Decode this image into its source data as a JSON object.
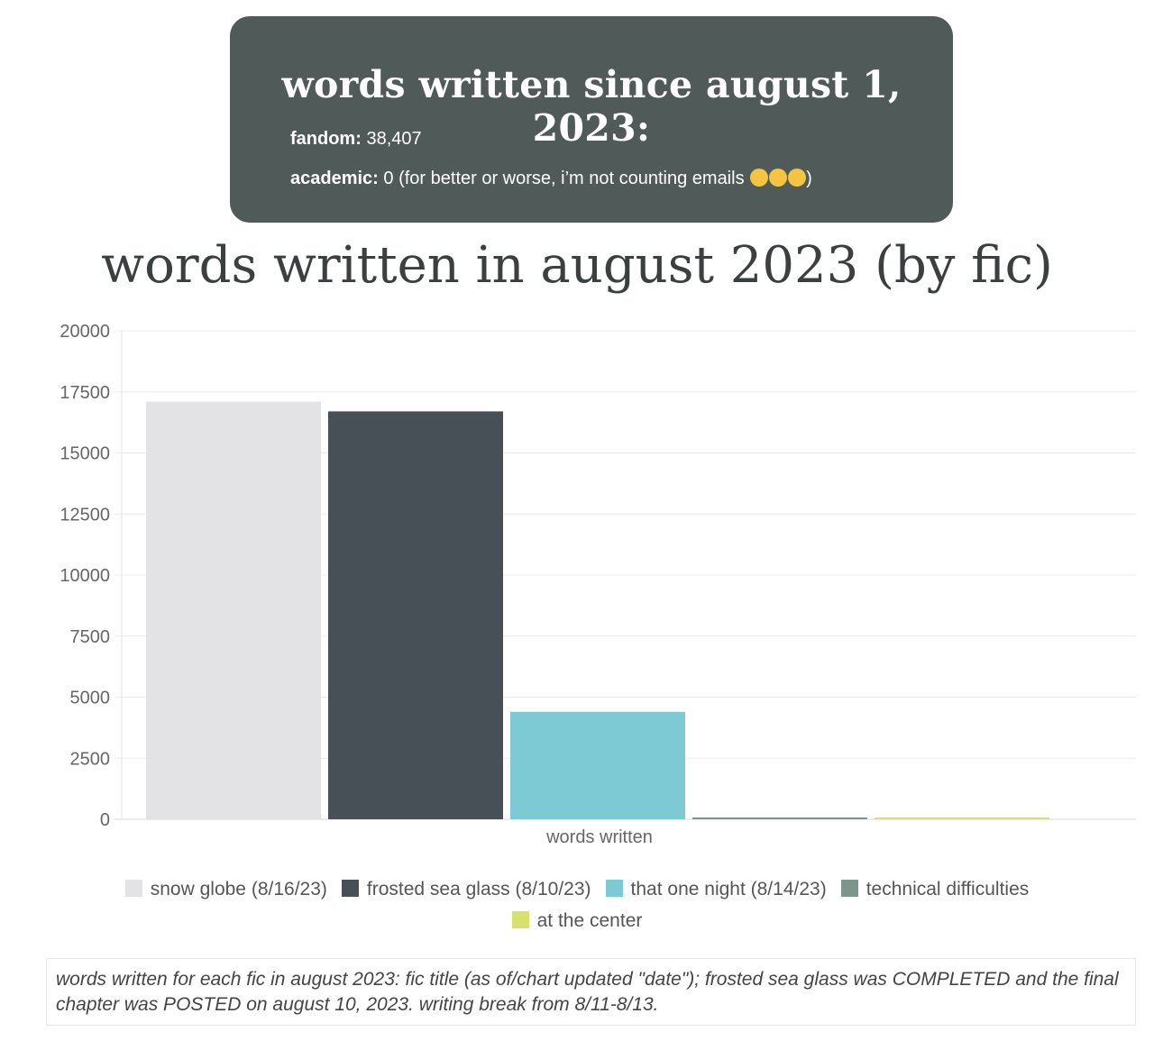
{
  "summary": {
    "title": "words written since august 1, 2023:",
    "fandom_label": "fandom:",
    "fandom_value": "38,407",
    "academic_label": "academic:",
    "academic_value": "0 (for better or worse, i’m not counting emails ",
    "academic_tail": ")",
    "emoji_icons": [
      "rolling-on-floor-laughing-emoji",
      "face-with-hand-over-mouth-emoji",
      "upside-down-face-emoji"
    ]
  },
  "chart_data": {
    "type": "bar",
    "title": "words written in august 2023 (by fic)",
    "categories": [
      "words written"
    ],
    "xlabel": "words written",
    "ylabel": "",
    "ylim": [
      0,
      20000
    ],
    "yticks": [
      "0",
      "2500",
      "5000",
      "7500",
      "10000",
      "12500",
      "15000",
      "17500",
      "20000"
    ],
    "grid": true,
    "legend_position": "bottom",
    "series": [
      {
        "name": "snow globe (8/16/23)",
        "values": [
          17100
        ],
        "color": "#e3e3e5"
      },
      {
        "name": "frosted sea glass (8/10/23)",
        "values": [
          16700
        ],
        "color": "#474f57"
      },
      {
        "name": "that one night (8/14/23)",
        "values": [
          4400
        ],
        "color": "#7ecad4"
      },
      {
        "name": "technical difficulties",
        "values": [
          30
        ],
        "color": "#7b978b"
      },
      {
        "name": "at the center",
        "values": [
          20
        ],
        "color": "#d6e26b"
      }
    ]
  },
  "note": "words written for each fic in august 2023: fic title (as of/chart updated \"date\"); frosted sea glass was COMPLETED and the final chapter was POSTED on august 10, 2023. writing break from 8/11-8/13."
}
